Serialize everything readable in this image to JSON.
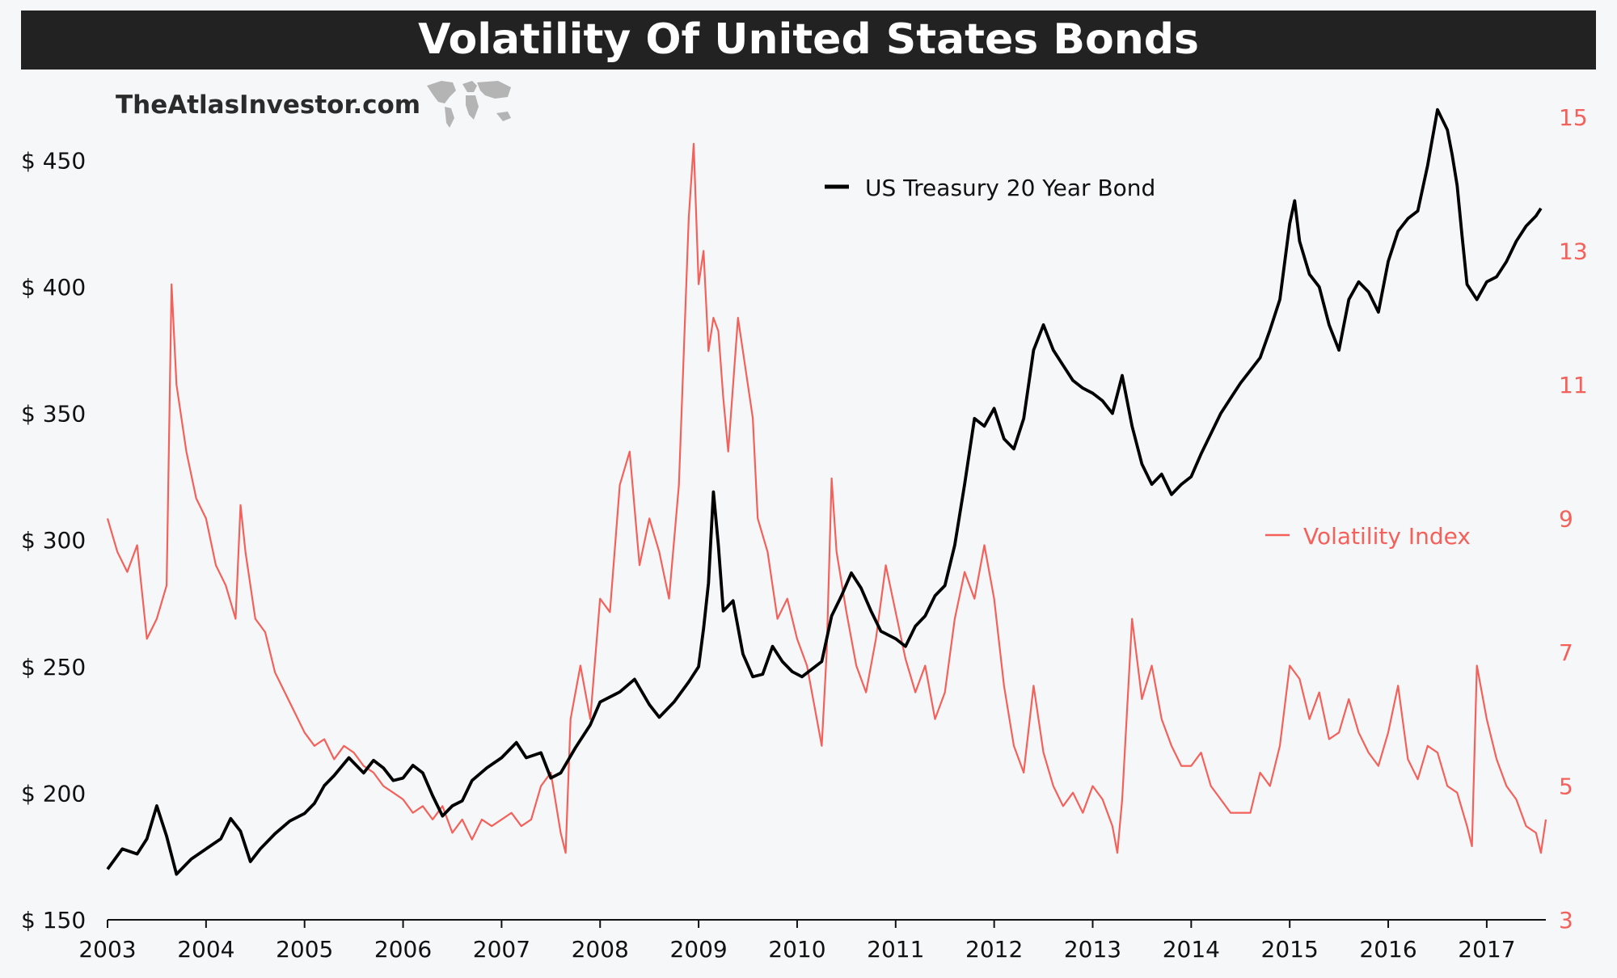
{
  "title": "Volatility Of United States Bonds",
  "brand": "TheAtlasInvestor.com",
  "colors": {
    "background": "#f6f7f9",
    "title_bar": "#222222",
    "bond_line": "#000000",
    "volatility_line": "#f4605a",
    "left_axis_text": "#111111",
    "right_axis_text": "#f4605a"
  },
  "icons": {
    "watermark": "world-map-icon"
  },
  "chart_data": {
    "type": "line",
    "x_ticks": [
      "2003",
      "2004",
      "2005",
      "2006",
      "2007",
      "2008",
      "2009",
      "2010",
      "2011",
      "2012",
      "2013",
      "2014",
      "2015",
      "2016",
      "2017"
    ],
    "xlim": [
      2003.0,
      2017.6
    ],
    "y_left": {
      "ticks": [
        "$ 150",
        "$ 200",
        "$ 250",
        "$ 300",
        "$ 350",
        "$ 400",
        "$ 450"
      ],
      "ylim": [
        150,
        475
      ]
    },
    "y_right": {
      "ticks": [
        "3",
        "5",
        "7",
        "9",
        "11",
        "13",
        "15"
      ],
      "ylim": [
        3,
        15.3
      ]
    },
    "grid": false,
    "series": [
      {
        "name": "US Treasury 20 Year Bond",
        "axis": "left",
        "color": "#000000",
        "legend_position": "top-center",
        "points": [
          [
            2003.0,
            170
          ],
          [
            2003.15,
            178
          ],
          [
            2003.3,
            176
          ],
          [
            2003.4,
            182
          ],
          [
            2003.5,
            195
          ],
          [
            2003.6,
            183
          ],
          [
            2003.7,
            168
          ],
          [
            2003.85,
            174
          ],
          [
            2004.0,
            178
          ],
          [
            2004.15,
            182
          ],
          [
            2004.25,
            190
          ],
          [
            2004.35,
            185
          ],
          [
            2004.45,
            173
          ],
          [
            2004.55,
            178
          ],
          [
            2004.7,
            184
          ],
          [
            2004.85,
            189
          ],
          [
            2005.0,
            192
          ],
          [
            2005.1,
            196
          ],
          [
            2005.2,
            203
          ],
          [
            2005.3,
            207
          ],
          [
            2005.45,
            214
          ],
          [
            2005.6,
            208
          ],
          [
            2005.7,
            213
          ],
          [
            2005.8,
            210
          ],
          [
            2005.9,
            205
          ],
          [
            2006.0,
            206
          ],
          [
            2006.1,
            211
          ],
          [
            2006.2,
            208
          ],
          [
            2006.3,
            199
          ],
          [
            2006.4,
            191
          ],
          [
            2006.5,
            195
          ],
          [
            2006.6,
            197
          ],
          [
            2006.7,
            205
          ],
          [
            2006.85,
            210
          ],
          [
            2007.0,
            214
          ],
          [
            2007.15,
            220
          ],
          [
            2007.25,
            214
          ],
          [
            2007.4,
            216
          ],
          [
            2007.5,
            206
          ],
          [
            2007.6,
            208
          ],
          [
            2007.75,
            218
          ],
          [
            2007.9,
            227
          ],
          [
            2008.0,
            236
          ],
          [
            2008.2,
            240
          ],
          [
            2008.35,
            245
          ],
          [
            2008.5,
            235
          ],
          [
            2008.6,
            230
          ],
          [
            2008.75,
            236
          ],
          [
            2008.9,
            244
          ],
          [
            2009.0,
            250
          ],
          [
            2009.05,
            265
          ],
          [
            2009.1,
            283
          ],
          [
            2009.15,
            319
          ],
          [
            2009.2,
            298
          ],
          [
            2009.25,
            272
          ],
          [
            2009.35,
            276
          ],
          [
            2009.45,
            255
          ],
          [
            2009.55,
            246
          ],
          [
            2009.65,
            247
          ],
          [
            2009.75,
            258
          ],
          [
            2009.85,
            252
          ],
          [
            2009.95,
            248
          ],
          [
            2010.05,
            246
          ],
          [
            2010.15,
            249
          ],
          [
            2010.25,
            252
          ],
          [
            2010.35,
            270
          ],
          [
            2010.45,
            278
          ],
          [
            2010.55,
            287
          ],
          [
            2010.65,
            281
          ],
          [
            2010.75,
            272
          ],
          [
            2010.85,
            264
          ],
          [
            2011.0,
            261
          ],
          [
            2011.1,
            258
          ],
          [
            2011.2,
            266
          ],
          [
            2011.3,
            270
          ],
          [
            2011.4,
            278
          ],
          [
            2011.5,
            282
          ],
          [
            2011.6,
            298
          ],
          [
            2011.7,
            322
          ],
          [
            2011.8,
            348
          ],
          [
            2011.9,
            345
          ],
          [
            2012.0,
            352
          ],
          [
            2012.1,
            340
          ],
          [
            2012.2,
            336
          ],
          [
            2012.3,
            348
          ],
          [
            2012.4,
            375
          ],
          [
            2012.5,
            385
          ],
          [
            2012.6,
            375
          ],
          [
            2012.7,
            369
          ],
          [
            2012.8,
            363
          ],
          [
            2012.9,
            360
          ],
          [
            2013.0,
            358
          ],
          [
            2013.1,
            355
          ],
          [
            2013.2,
            350
          ],
          [
            2013.3,
            365
          ],
          [
            2013.4,
            345
          ],
          [
            2013.5,
            330
          ],
          [
            2013.6,
            322
          ],
          [
            2013.7,
            326
          ],
          [
            2013.8,
            318
          ],
          [
            2013.9,
            322
          ],
          [
            2014.0,
            325
          ],
          [
            2014.1,
            334
          ],
          [
            2014.2,
            342
          ],
          [
            2014.3,
            350
          ],
          [
            2014.4,
            356
          ],
          [
            2014.5,
            362
          ],
          [
            2014.6,
            367
          ],
          [
            2014.7,
            372
          ],
          [
            2014.8,
            383
          ],
          [
            2014.9,
            395
          ],
          [
            2015.0,
            425
          ],
          [
            2015.05,
            434
          ],
          [
            2015.1,
            418
          ],
          [
            2015.2,
            405
          ],
          [
            2015.3,
            400
          ],
          [
            2015.4,
            385
          ],
          [
            2015.5,
            375
          ],
          [
            2015.6,
            395
          ],
          [
            2015.7,
            402
          ],
          [
            2015.8,
            398
          ],
          [
            2015.9,
            390
          ],
          [
            2016.0,
            410
          ],
          [
            2016.1,
            422
          ],
          [
            2016.2,
            427
          ],
          [
            2016.3,
            430
          ],
          [
            2016.4,
            448
          ],
          [
            2016.5,
            470
          ],
          [
            2016.6,
            462
          ],
          [
            2016.65,
            452
          ],
          [
            2016.7,
            440
          ],
          [
            2016.75,
            420
          ],
          [
            2016.8,
            401
          ],
          [
            2016.9,
            395
          ],
          [
            2017.0,
            402
          ],
          [
            2017.1,
            404
          ],
          [
            2017.2,
            410
          ],
          [
            2017.3,
            418
          ],
          [
            2017.4,
            424
          ],
          [
            2017.5,
            428
          ],
          [
            2017.55,
            431
          ]
        ]
      },
      {
        "name": "Volatility Index",
        "axis": "right",
        "color": "#f4605a",
        "legend_position": "right-middle",
        "points": [
          [
            2003.0,
            9.0
          ],
          [
            2003.1,
            8.5
          ],
          [
            2003.2,
            8.2
          ],
          [
            2003.3,
            8.6
          ],
          [
            2003.4,
            7.2
          ],
          [
            2003.5,
            7.5
          ],
          [
            2003.6,
            8.0
          ],
          [
            2003.65,
            12.5
          ],
          [
            2003.7,
            11.0
          ],
          [
            2003.8,
            10.0
          ],
          [
            2003.9,
            9.3
          ],
          [
            2004.0,
            9.0
          ],
          [
            2004.1,
            8.3
          ],
          [
            2004.2,
            8.0
          ],
          [
            2004.3,
            7.5
          ],
          [
            2004.35,
            9.2
          ],
          [
            2004.4,
            8.5
          ],
          [
            2004.5,
            7.5
          ],
          [
            2004.6,
            7.3
          ],
          [
            2004.7,
            6.7
          ],
          [
            2004.8,
            6.4
          ],
          [
            2004.9,
            6.1
          ],
          [
            2005.0,
            5.8
          ],
          [
            2005.1,
            5.6
          ],
          [
            2005.2,
            5.7
          ],
          [
            2005.3,
            5.4
          ],
          [
            2005.4,
            5.6
          ],
          [
            2005.5,
            5.5
          ],
          [
            2005.6,
            5.3
          ],
          [
            2005.7,
            5.2
          ],
          [
            2005.8,
            5.0
          ],
          [
            2005.9,
            4.9
          ],
          [
            2006.0,
            4.8
          ],
          [
            2006.1,
            4.6
          ],
          [
            2006.2,
            4.7
          ],
          [
            2006.3,
            4.5
          ],
          [
            2006.4,
            4.7
          ],
          [
            2006.5,
            4.3
          ],
          [
            2006.6,
            4.5
          ],
          [
            2006.7,
            4.2
          ],
          [
            2006.8,
            4.5
          ],
          [
            2006.9,
            4.4
          ],
          [
            2007.0,
            4.5
          ],
          [
            2007.1,
            4.6
          ],
          [
            2007.2,
            4.4
          ],
          [
            2007.3,
            4.5
          ],
          [
            2007.4,
            5.0
          ],
          [
            2007.5,
            5.2
          ],
          [
            2007.6,
            4.3
          ],
          [
            2007.65,
            4.0
          ],
          [
            2007.7,
            6.0
          ],
          [
            2007.8,
            6.8
          ],
          [
            2007.9,
            6.0
          ],
          [
            2008.0,
            7.8
          ],
          [
            2008.1,
            7.6
          ],
          [
            2008.2,
            9.5
          ],
          [
            2008.3,
            10.0
          ],
          [
            2008.4,
            8.3
          ],
          [
            2008.5,
            9.0
          ],
          [
            2008.6,
            8.5
          ],
          [
            2008.7,
            7.8
          ],
          [
            2008.8,
            9.5
          ],
          [
            2008.9,
            13.5
          ],
          [
            2008.95,
            14.6
          ],
          [
            2009.0,
            12.5
          ],
          [
            2009.05,
            13.0
          ],
          [
            2009.1,
            11.5
          ],
          [
            2009.15,
            12.0
          ],
          [
            2009.2,
            11.8
          ],
          [
            2009.25,
            10.8
          ],
          [
            2009.3,
            10.0
          ],
          [
            2009.4,
            12.0
          ],
          [
            2009.5,
            11.0
          ],
          [
            2009.55,
            10.5
          ],
          [
            2009.6,
            9.0
          ],
          [
            2009.7,
            8.5
          ],
          [
            2009.8,
            7.5
          ],
          [
            2009.9,
            7.8
          ],
          [
            2010.0,
            7.2
          ],
          [
            2010.1,
            6.8
          ],
          [
            2010.2,
            6.0
          ],
          [
            2010.25,
            5.6
          ],
          [
            2010.3,
            7.0
          ],
          [
            2010.35,
            9.6
          ],
          [
            2010.4,
            8.5
          ],
          [
            2010.5,
            7.6
          ],
          [
            2010.6,
            6.8
          ],
          [
            2010.7,
            6.4
          ],
          [
            2010.8,
            7.2
          ],
          [
            2010.9,
            8.3
          ],
          [
            2011.0,
            7.6
          ],
          [
            2011.1,
            6.9
          ],
          [
            2011.2,
            6.4
          ],
          [
            2011.3,
            6.8
          ],
          [
            2011.4,
            6.0
          ],
          [
            2011.5,
            6.4
          ],
          [
            2011.6,
            7.5
          ],
          [
            2011.7,
            8.2
          ],
          [
            2011.8,
            7.8
          ],
          [
            2011.9,
            8.6
          ],
          [
            2012.0,
            7.8
          ],
          [
            2012.1,
            6.5
          ],
          [
            2012.2,
            5.6
          ],
          [
            2012.3,
            5.2
          ],
          [
            2012.4,
            6.5
          ],
          [
            2012.5,
            5.5
          ],
          [
            2012.6,
            5.0
          ],
          [
            2012.7,
            4.7
          ],
          [
            2012.8,
            4.9
          ],
          [
            2012.9,
            4.6
          ],
          [
            2013.0,
            5.0
          ],
          [
            2013.1,
            4.8
          ],
          [
            2013.2,
            4.4
          ],
          [
            2013.25,
            4.0
          ],
          [
            2013.3,
            4.8
          ],
          [
            2013.4,
            7.5
          ],
          [
            2013.5,
            6.3
          ],
          [
            2013.6,
            6.8
          ],
          [
            2013.7,
            6.0
          ],
          [
            2013.8,
            5.6
          ],
          [
            2013.9,
            5.3
          ],
          [
            2014.0,
            5.3
          ],
          [
            2014.1,
            5.5
          ],
          [
            2014.2,
            5.0
          ],
          [
            2014.3,
            4.8
          ],
          [
            2014.4,
            4.6
          ],
          [
            2014.5,
            4.6
          ],
          [
            2014.6,
            4.6
          ],
          [
            2014.7,
            5.2
          ],
          [
            2014.8,
            5.0
          ],
          [
            2014.9,
            5.6
          ],
          [
            2015.0,
            6.8
          ],
          [
            2015.1,
            6.6
          ],
          [
            2015.2,
            6.0
          ],
          [
            2015.3,
            6.4
          ],
          [
            2015.4,
            5.7
          ],
          [
            2015.5,
            5.8
          ],
          [
            2015.6,
            6.3
          ],
          [
            2015.7,
            5.8
          ],
          [
            2015.8,
            5.5
          ],
          [
            2015.9,
            5.3
          ],
          [
            2016.0,
            5.8
          ],
          [
            2016.1,
            6.5
          ],
          [
            2016.2,
            5.4
          ],
          [
            2016.3,
            5.1
          ],
          [
            2016.4,
            5.6
          ],
          [
            2016.5,
            5.5
          ],
          [
            2016.6,
            5.0
          ],
          [
            2016.7,
            4.9
          ],
          [
            2016.8,
            4.4
          ],
          [
            2016.85,
            4.1
          ],
          [
            2016.9,
            6.8
          ],
          [
            2017.0,
            6.0
          ],
          [
            2017.1,
            5.4
          ],
          [
            2017.2,
            5.0
          ],
          [
            2017.3,
            4.8
          ],
          [
            2017.4,
            4.4
          ],
          [
            2017.5,
            4.3
          ],
          [
            2017.55,
            4.0
          ],
          [
            2017.6,
            4.5
          ]
        ]
      }
    ]
  }
}
